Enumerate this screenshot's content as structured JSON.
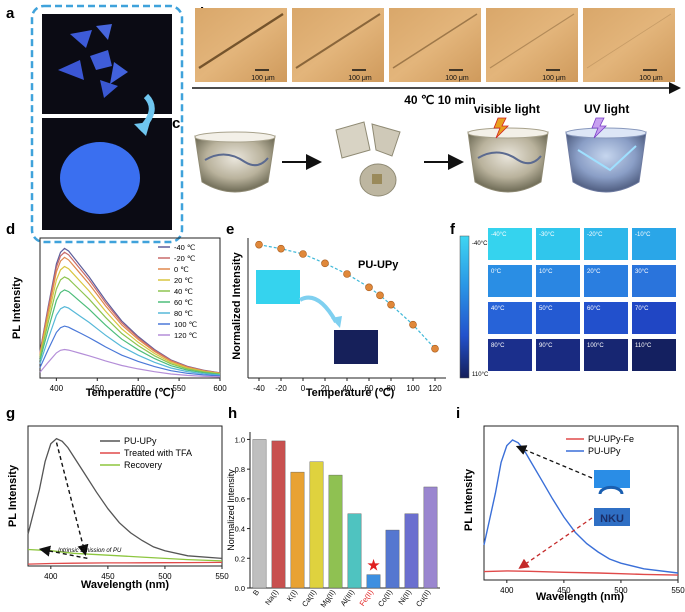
{
  "panel_letters": {
    "a": "a",
    "b": "b",
    "c": "c",
    "d": "d",
    "e": "e",
    "f": "f",
    "g": "g",
    "h": "h",
    "i": "i"
  },
  "panel_b": {
    "scale_labels": [
      "100 μm",
      "100 μm",
      "100 μm",
      "100 μm",
      "100 μm"
    ],
    "condition": "40 ℃  10 min"
  },
  "panel_c": {
    "visible_light_label": "visible light",
    "uv_light_label": "UV light"
  },
  "panel_f": {
    "colorbar_top": "-40°C",
    "colorbar_bottom": "110°C",
    "tiles": [
      "-40°C",
      "-30°C",
      "-20°C",
      "-10°C",
      "0°C",
      "10°C",
      "20°C",
      "30°C",
      "40°C",
      "50°C",
      "60°C",
      "70°C",
      "80°C",
      "90°C",
      "100°C",
      "110°C"
    ],
    "tile_colors": [
      "#35d3ee",
      "#30c6ec",
      "#2db7ea",
      "#2aa6e8",
      "#2a8ee4",
      "#2a86e2",
      "#2a7ee0",
      "#2a74dc",
      "#2763d8",
      "#245ad2",
      "#2250cc",
      "#2046c4",
      "#1b2f8c",
      "#192a80",
      "#172672",
      "#142060"
    ]
  },
  "panel_i": {
    "nku_text": "NKU"
  },
  "chart_data": [
    {
      "panel": "d",
      "type": "line",
      "xlabel": "Temperature (℃)",
      "ylabel": "PL Intensity",
      "xlim": [
        380,
        600
      ],
      "xticks": [
        400,
        450,
        500,
        550,
        600
      ],
      "x": [
        380,
        390,
        400,
        405,
        410,
        415,
        420,
        430,
        440,
        450,
        460,
        470,
        480,
        500,
        520,
        540,
        560,
        580,
        600
      ],
      "shape": [
        0.2,
        0.55,
        0.88,
        0.97,
        1.0,
        0.98,
        0.94,
        0.86,
        0.78,
        0.69,
        0.6,
        0.52,
        0.44,
        0.32,
        0.22,
        0.14,
        0.09,
        0.06,
        0.04
      ],
      "series": [
        {
          "name": "-40 ℃",
          "color": "#5d5d9a",
          "peak": 1.0
        },
        {
          "name": "-20 ℃",
          "color": "#c96b6b",
          "peak": 0.97
        },
        {
          "name": "0 ℃",
          "color": "#e0884e",
          "peak": 0.93
        },
        {
          "name": "20 ℃",
          "color": "#d9c640",
          "peak": 0.86
        },
        {
          "name": "40 ℃",
          "color": "#8ec450",
          "peak": 0.78
        },
        {
          "name": "60 ℃",
          "color": "#4dbd7a",
          "peak": 0.68
        },
        {
          "name": "80 ℃",
          "color": "#56b8d8",
          "peak": 0.55
        },
        {
          "name": "100 ℃",
          "color": "#4a78d8",
          "peak": 0.4
        },
        {
          "name": "120 ℃",
          "color": "#b48ed8",
          "peak": 0.22
        }
      ]
    },
    {
      "panel": "e",
      "type": "scatter",
      "title": "PU-UPy",
      "xlabel": "Temperature (℃)",
      "ylabel": "Normalized Intensity",
      "xlim": [
        -50,
        130
      ],
      "ylim": [
        0,
        1.05
      ],
      "xticks": [
        -40,
        -20,
        0,
        20,
        40,
        60,
        80,
        100,
        120
      ],
      "x": [
        -40,
        -20,
        0,
        20,
        40,
        60,
        70,
        80,
        100,
        120
      ],
      "y": [
        1.0,
        0.97,
        0.93,
        0.86,
        0.78,
        0.68,
        0.62,
        0.55,
        0.4,
        0.22
      ],
      "marker_color": "#e0883a"
    },
    {
      "panel": "g",
      "type": "line",
      "xlabel": "Wavelength (nm)",
      "ylabel": "PL Intensity",
      "xlim": [
        380,
        550
      ],
      "xticks": [
        400,
        450,
        500,
        550
      ],
      "annotation": "Intrinsic Emission of PU",
      "series": [
        {
          "name": "PU-UPy",
          "color": "#555555",
          "x": [
            380,
            390,
            395,
            400,
            405,
            410,
            415,
            420,
            430,
            440,
            450,
            460,
            470,
            480,
            490,
            500,
            520,
            550
          ],
          "y": [
            0.25,
            0.6,
            0.82,
            0.96,
            1.0,
            0.98,
            0.93,
            0.86,
            0.72,
            0.58,
            0.45,
            0.34,
            0.26,
            0.2,
            0.15,
            0.12,
            0.08,
            0.06
          ]
        },
        {
          "name": "Treated with TFA",
          "color": "#e04a4a",
          "x": [
            380,
            400,
            420,
            450,
            480,
            500,
            520,
            550
          ],
          "y": [
            0.015,
            0.02,
            0.022,
            0.024,
            0.025,
            0.026,
            0.027,
            0.028
          ]
        },
        {
          "name": "Recovery",
          "color": "#8dc63f",
          "x": [
            380,
            400,
            420,
            450,
            480,
            500,
            520,
            550
          ],
          "y": [
            0.13,
            0.12,
            0.1,
            0.085,
            0.07,
            0.06,
            0.05,
            0.04
          ]
        }
      ]
    },
    {
      "panel": "h",
      "type": "bar",
      "ylabel": "Normalized Intensity",
      "ylim": [
        0,
        1.05
      ],
      "yticks": [
        0.0,
        0.2,
        0.4,
        0.6,
        0.8,
        1.0
      ],
      "categories": [
        "B",
        "Na(I)",
        "K(I)",
        "Ca(II)",
        "Mg(II)",
        "Al(III)",
        "Fe(II)",
        "Co(II)",
        "Ni(II)",
        "Cu(II)"
      ],
      "values": [
        1.0,
        0.99,
        0.78,
        0.85,
        0.76,
        0.5,
        0.09,
        0.39,
        0.5,
        0.68
      ],
      "colors": [
        "#bfbfbf",
        "#c8504f",
        "#e8a233",
        "#dfd23e",
        "#8fc152",
        "#4fc3c0",
        "#3d8fe0",
        "#5577d0",
        "#6b6fcf",
        "#9a86cf"
      ],
      "highlight": "Fe(II)",
      "highlight_color": "#e02020"
    },
    {
      "panel": "i",
      "type": "line",
      "xlabel": "Wavelength (nm)",
      "ylabel": "PL Intensity",
      "xlim": [
        380,
        550
      ],
      "xticks": [
        400,
        450,
        500,
        550
      ],
      "series": [
        {
          "name": "PU-UPy-Fe",
          "color": "#e04a4a",
          "x": [
            380,
            400,
            420,
            450,
            480,
            500,
            520,
            550
          ],
          "y": [
            0.06,
            0.065,
            0.062,
            0.055,
            0.05,
            0.045,
            0.04,
            0.035
          ]
        },
        {
          "name": "PU-UPy",
          "color": "#3a6fd8",
          "x": [
            380,
            390,
            395,
            400,
            405,
            410,
            415,
            420,
            430,
            440,
            450,
            460,
            470,
            480,
            490,
            500,
            520,
            550
          ],
          "y": [
            0.25,
            0.62,
            0.84,
            0.96,
            1.0,
            0.98,
            0.93,
            0.86,
            0.72,
            0.58,
            0.45,
            0.34,
            0.26,
            0.2,
            0.15,
            0.12,
            0.08,
            0.05
          ]
        }
      ]
    }
  ]
}
